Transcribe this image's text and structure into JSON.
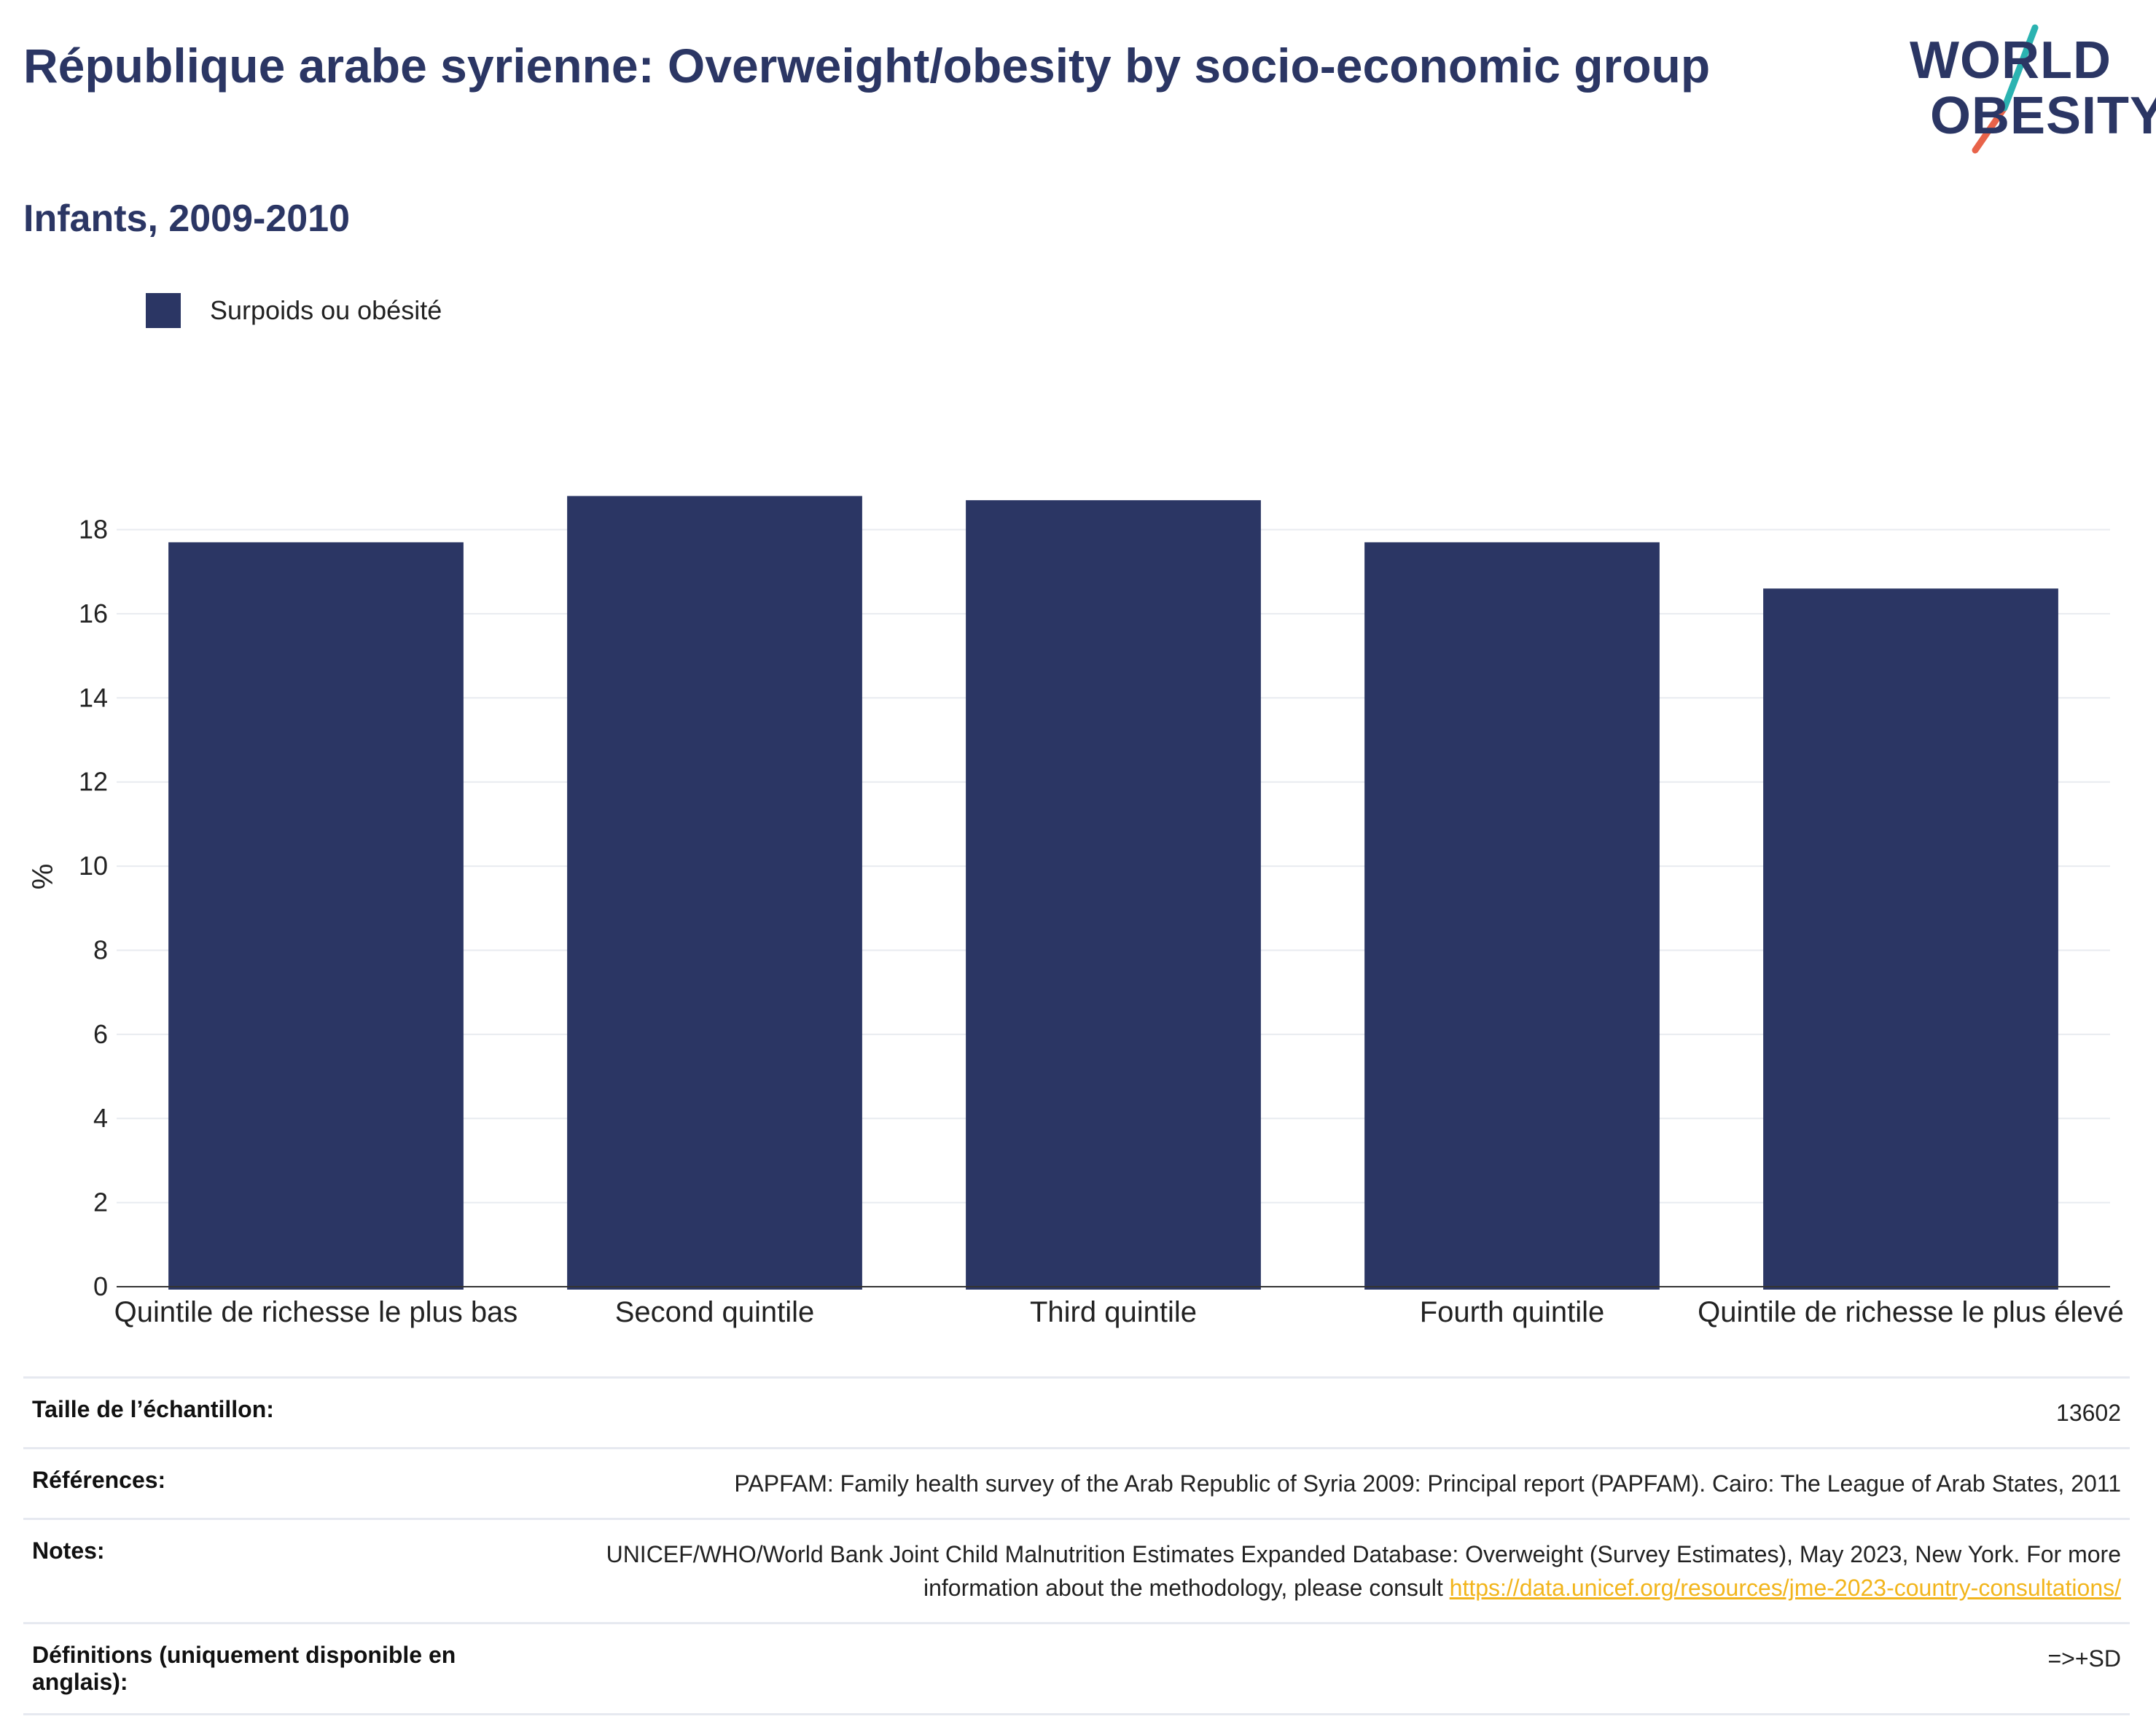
{
  "header": {
    "title": "République arabe syrienne: Overweight/obesity by socio-economic group",
    "subtitle": "Infants, 2009-2010"
  },
  "logo": {
    "line1": "WORLD",
    "line2": "OBESITY",
    "colors": {
      "text": "#2b3664",
      "slash_top": "#2bb3b1",
      "slash_bottom": "#e8634a"
    }
  },
  "legend": {
    "label": "Surpoids ou obésité",
    "color": "#2b3664"
  },
  "chart_data": {
    "type": "bar",
    "categories": [
      "Quintile de richesse le plus bas",
      "Second quintile",
      "Third quintile",
      "Fourth quintile",
      "Quintile de richesse le plus élevé"
    ],
    "series": [
      {
        "name": "Surpoids ou obésité",
        "values": [
          17.7,
          18.8,
          18.7,
          17.7,
          16.6
        ],
        "color": "#2b3664"
      }
    ],
    "ylabel": "%",
    "xlabel": "",
    "ylim": [
      0,
      19.5
    ],
    "yticks": [
      0,
      2,
      4,
      6,
      8,
      10,
      12,
      14,
      16,
      18
    ],
    "grid": true,
    "legend_position": "top-left"
  },
  "info": {
    "sample_size": {
      "label": "Taille de l’échantillon:",
      "value": "13602"
    },
    "references": {
      "label": "Références:",
      "value": "PAPFAM: Family health survey of the Arab Republic of Syria 2009: Principal report (PAPFAM). Cairo: The League of Arab States, 2011"
    },
    "notes": {
      "label": "Notes:",
      "text": "UNICEF/WHO/World Bank Joint Child Malnutrition Estimates Expanded Database: Overweight (Survey Estimates), May 2023, New York. For more information about the methodology, please consult",
      "link": "https://data.unicef.org/resources/jme-2023-country-consultations/"
    },
    "definitions": {
      "label": "Définitions (uniquement disponible en anglais):",
      "value": "=>+SD"
    }
  }
}
